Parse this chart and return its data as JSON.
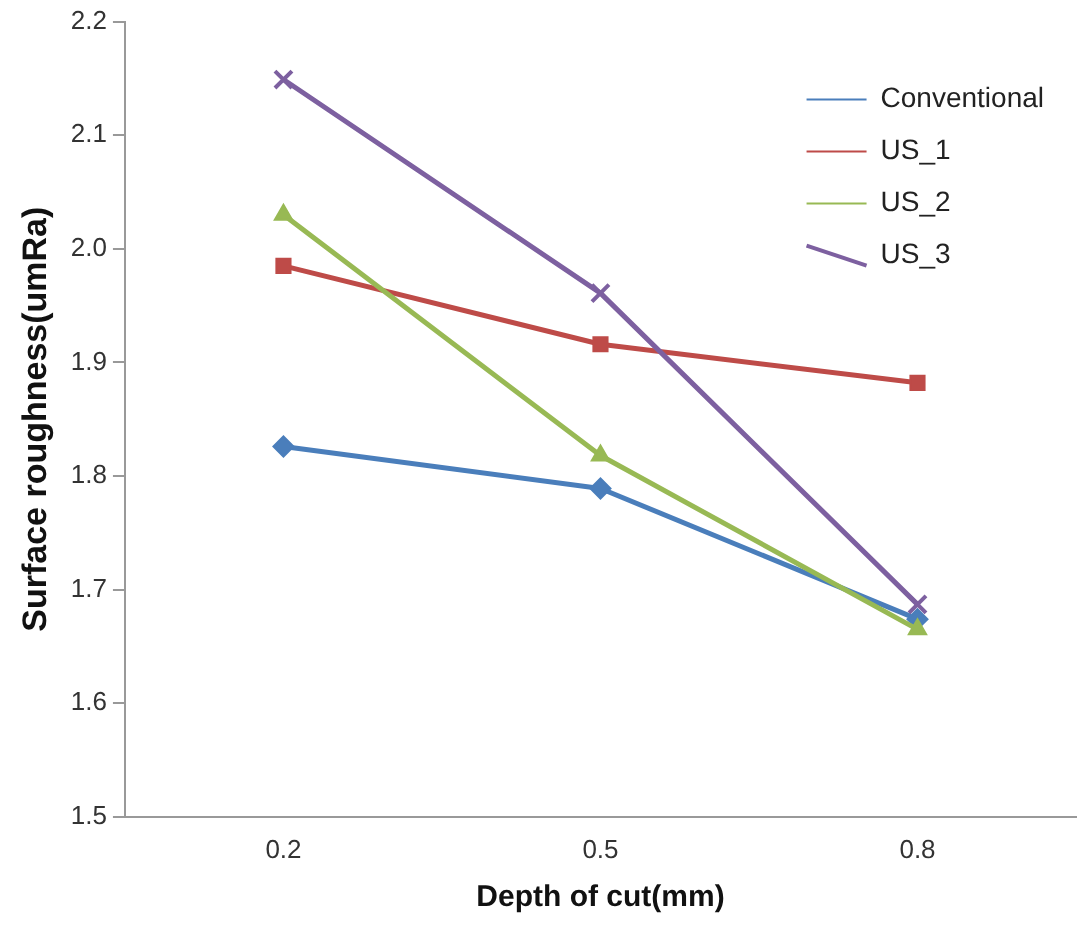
{
  "chart_data": {
    "type": "line",
    "xlabel": "Depth of cut(mm)",
    "ylabel": "Surface roughness(umRa)",
    "categories": [
      "0.2",
      "0.5",
      "0.8"
    ],
    "ylim": [
      1.5,
      2.2
    ],
    "yticks": [
      1.5,
      1.6,
      1.7,
      1.8,
      1.9,
      {
        "value": 2,
        "label": "2.0"
      },
      2.1,
      2.2
    ],
    "grid": false,
    "legend": "top right",
    "line_style": "solid",
    "series": [
      {
        "name": "Conventional",
        "color": "#4a7ebb",
        "marker": "diamond",
        "values": [
          1.826,
          1.789,
          1.674
        ]
      },
      {
        "name": "US_1",
        "color": "#be4b48",
        "marker": "square",
        "values": [
          1.985,
          1.916,
          1.882
        ]
      },
      {
        "name": "US_2",
        "color": "#98b954",
        "marker": "triangle",
        "values": [
          2.03,
          1.818,
          1.665
        ]
      },
      {
        "name": "US_3",
        "color": "#7d60a0",
        "marker": "cross",
        "values": [
          2.149,
          1.961,
          1.687
        ]
      }
    ]
  }
}
